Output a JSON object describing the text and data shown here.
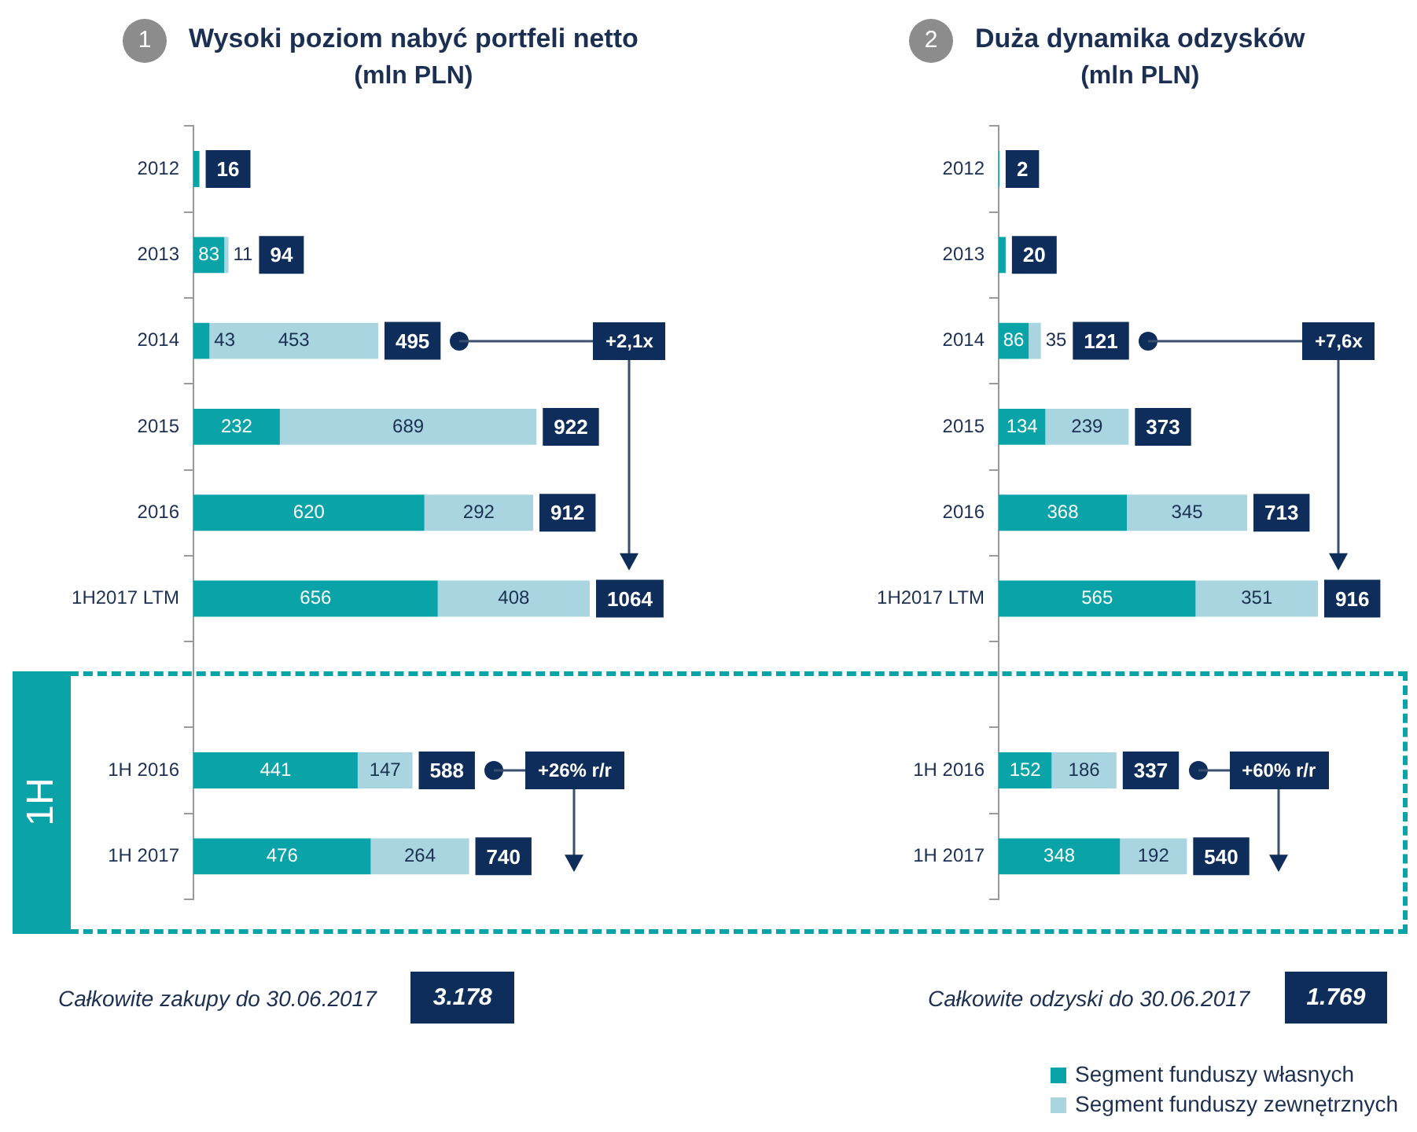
{
  "chart_data": [
    {
      "type": "bar",
      "orientation": "horizontal",
      "stacked": true,
      "title": "Wysoki poziom nabyć portfeli netto",
      "subtitle": "(mln PLN)",
      "categories": [
        "2012",
        "2013",
        "2014",
        "2015",
        "2016",
        "1H2017 LTM",
        null,
        "1H 2016",
        "1H 2017"
      ],
      "series": [
        {
          "color": "#0aa3a8",
          "values": [
            16,
            83,
            43,
            232,
            620,
            656,
            null,
            441,
            476
          ],
          "value_labels": [
            null,
            "83",
            "43",
            "232",
            "620",
            "656",
            null,
            "441",
            "476"
          ]
        },
        {
          "color": "#a8d5df",
          "values": [
            null,
            11,
            453,
            689,
            292,
            408,
            null,
            147,
            264
          ],
          "value_labels": [
            null,
            "11",
            "453",
            "689",
            "292",
            "408",
            null,
            "147",
            "264"
          ]
        }
      ],
      "totals": [
        "16",
        "94",
        "495",
        "922",
        "912",
        "1064",
        null,
        "588",
        "740"
      ],
      "tick_labels": "y",
      "grid": false,
      "legend": false,
      "annotations": [
        "1",
        "+2,1x",
        "+26% r/r",
        "Całkowite zakupy do 30.06.2017",
        "3.178",
        "1H"
      ]
    },
    {
      "type": "bar",
      "orientation": "horizontal",
      "stacked": true,
      "title": "Duża dynamika odzysków",
      "subtitle": "(mln PLN)",
      "categories": [
        "2012",
        "2013",
        "2014",
        "2015",
        "2016",
        "1H2017 LTM",
        null,
        "1H 2016",
        "1H 2017"
      ],
      "series": [
        {
          "name": "Segment funduszy własnych",
          "color": "#0aa3a8",
          "values": [
            2,
            20,
            86,
            134,
            368,
            565,
            null,
            152,
            348
          ],
          "value_labels": [
            null,
            null,
            "86",
            "134",
            "368",
            "565",
            null,
            "152",
            "348"
          ]
        },
        {
          "name": "Segment funduszy zewnętrznych",
          "color": "#a8d5df",
          "values": [
            null,
            null,
            35,
            239,
            345,
            351,
            null,
            186,
            192
          ],
          "value_labels": [
            null,
            null,
            "35",
            "239",
            "345",
            "351",
            null,
            "186",
            "192"
          ]
        }
      ],
      "totals": [
        "2",
        "20",
        "121",
        "373",
        "713",
        "916",
        null,
        "337",
        "540"
      ],
      "tick_labels": "y",
      "grid": false,
      "legend": "bottom right",
      "annotations": [
        "2",
        "+7,6x",
        "+60% r/r",
        "Całkowite odzyski do 30.06.2017",
        "1.769"
      ]
    }
  ]
}
